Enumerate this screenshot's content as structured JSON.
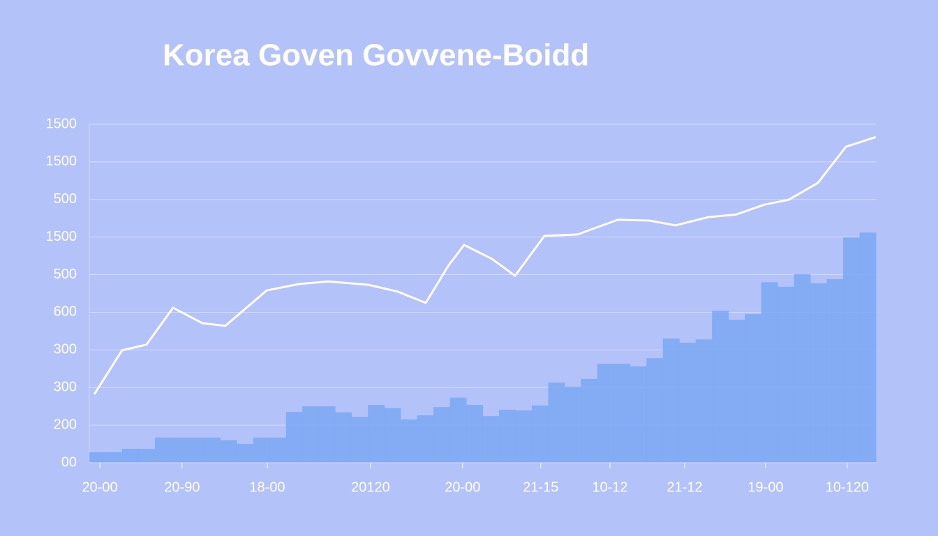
{
  "chart_data": {
    "type": "bar",
    "title": "Korea Goven Govvene-Boidd",
    "xlim": [
      0,
      48
    ],
    "xticks": [
      {
        "value": 0.64,
        "label": "20-00"
      },
      {
        "value": 5.66,
        "label": "20-90"
      },
      {
        "value": 10.86,
        "label": "18-00"
      },
      {
        "value": 17.16,
        "label": "20120"
      },
      {
        "value": 22.78,
        "label": "20-00"
      },
      {
        "value": 27.55,
        "label": "21-15"
      },
      {
        "value": 31.77,
        "label": "10-12"
      },
      {
        "value": 36.33,
        "label": "21-12"
      },
      {
        "value": 41.27,
        "label": "19-00"
      },
      {
        "value": 46.25,
        "label": "10-120"
      }
    ],
    "ylim": [
      0,
      9
    ],
    "yticks": [
      0,
      1,
      2,
      3,
      4,
      5,
      6,
      7,
      8,
      9
    ],
    "ytick_labels": [
      "00",
      "200",
      "300",
      "300",
      "600",
      "500",
      "1500",
      "500",
      "1500",
      "1500"
    ],
    "grid": true,
    "color": "#7eaaf4",
    "values": [
      0.28,
      0.28,
      0.37,
      0.37,
      0.67,
      0.67,
      0.67,
      0.67,
      0.6,
      0.5,
      0.67,
      0.67,
      1.35,
      1.5,
      1.5,
      1.34,
      1.22,
      1.54,
      1.45,
      1.15,
      1.26,
      1.48,
      1.73,
      1.54,
      1.24,
      1.41,
      1.39,
      1.52,
      2.13,
      2.02,
      2.23,
      2.63,
      2.63,
      2.56,
      2.78,
      3.3,
      3.19,
      3.28,
      4.04,
      3.8,
      3.95,
      4.8,
      4.68,
      5.01,
      4.77,
      4.88,
      5.99,
      6.12
    ],
    "line": {
      "color": "#ffffff",
      "x": [
        0.3,
        2.0,
        3.49,
        5.11,
        6.9,
        8.3,
        10.82,
        12.78,
        14.57,
        17.04,
        18.82,
        20.53,
        21.93,
        22.87,
        24.57,
        25.98,
        27.77,
        29.81,
        32.24,
        34.16,
        35.77,
        37.78,
        39.48,
        41.18,
        42.67,
        44.46,
        46.17,
        48
      ],
      "values": [
        1.82,
        2.99,
        3.14,
        4.12,
        3.71,
        3.64,
        4.58,
        4.75,
        4.82,
        4.73,
        4.55,
        4.25,
        5.25,
        5.79,
        5.42,
        4.97,
        6.03,
        6.07,
        6.46,
        6.44,
        6.31,
        6.53,
        6.6,
        6.86,
        6.99,
        7.44,
        8.4,
        8.66
      ]
    }
  }
}
